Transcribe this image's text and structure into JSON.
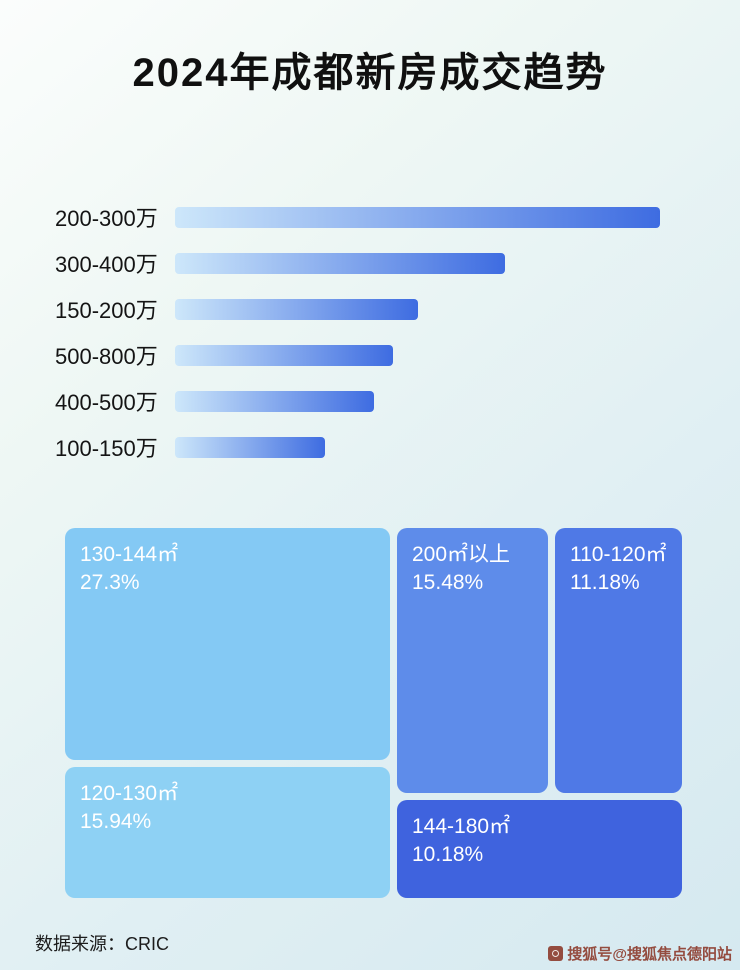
{
  "title": "2024年成都新房成交趋势",
  "chart_data": [
    {
      "type": "bar",
      "orientation": "horizontal",
      "categories": [
        "200-300万",
        "300-400万",
        "150-200万",
        "500-800万",
        "400-500万",
        "100-150万"
      ],
      "values": [
        100,
        68,
        50,
        45,
        41,
        31
      ],
      "values_note": "relative bar lengths as % of longest bar; no numeric labels are shown in the image",
      "gradient": [
        "#cde7fa",
        "#3e6ce1"
      ],
      "grid": false,
      "legend_position": "none"
    },
    {
      "type": "treemap",
      "items": [
        {
          "label": "130-144㎡",
          "value_pct": 27.3,
          "value_label": "27.3%",
          "color": "#84c9f4"
        },
        {
          "label": "120-130㎡",
          "value_pct": 15.94,
          "value_label": "15.94%",
          "color": "#8ed1f4"
        },
        {
          "label": "200㎡以上",
          "value_pct": 15.48,
          "value_label": "15.48%",
          "color": "#5e8cea"
        },
        {
          "label": "110-120㎡",
          "value_pct": 11.18,
          "value_label": "11.18%",
          "color": "#4f79e6"
        },
        {
          "label": "144-180㎡",
          "value_pct": 10.18,
          "value_label": "10.18%",
          "color": "#3f63de"
        }
      ]
    }
  ],
  "footer": {
    "source": "数据来源：CRIC"
  },
  "watermark": {
    "text": "搜狐号@搜狐焦点德阳站",
    "color": "#8d3b2c"
  }
}
